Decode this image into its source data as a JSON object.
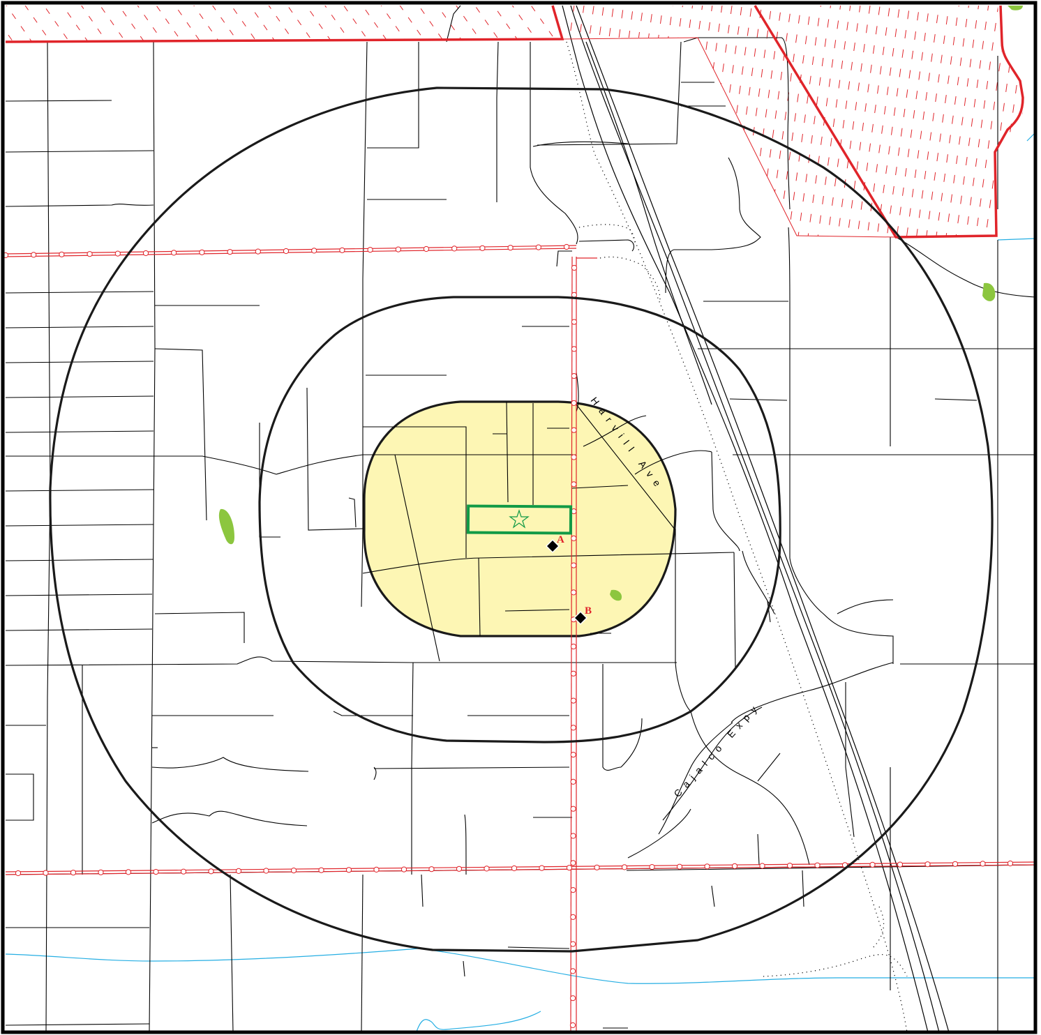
{
  "streets": {
    "harvill": "Harvill Ave",
    "cajalco": "Cajalco Expy"
  },
  "markers": {
    "a_label": "A",
    "b_label": "B"
  },
  "colors": {
    "inner_zone_fill": "#fdf6b4",
    "site_outline": "#119a46",
    "boundary_red": "#e0242a",
    "park_green": "#8cc63f",
    "water_blue": "#25aee3",
    "ring_black": "#1a1a1a"
  },
  "icons": {
    "site": "star-icon",
    "receptor": "diamond-icon"
  }
}
